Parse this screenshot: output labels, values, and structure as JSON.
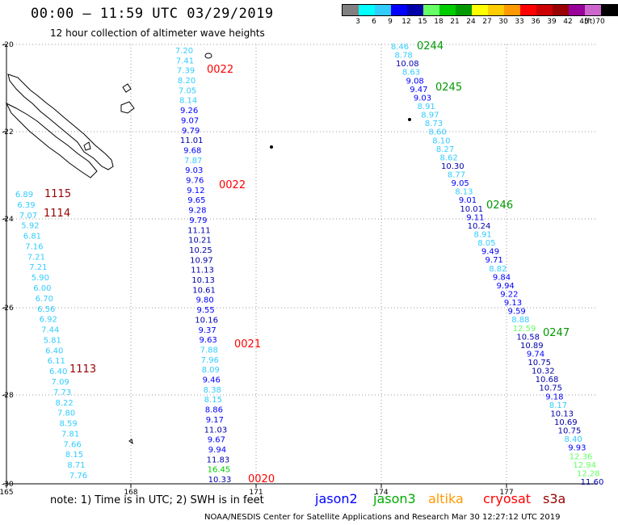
{
  "header": {
    "title": "00:00 – 11:59 UTC 03/29/2019",
    "subtitle": "12 hour collection of altimeter wave heights"
  },
  "colorbar": {
    "unit": "(ft)",
    "colors": [
      "#808080",
      "#00ffff",
      "#33ccff",
      "#0000ff",
      "#0000aa",
      "#66ff66",
      "#00cc00",
      "#009900",
      "#ffff00",
      "#ffcc00",
      "#ff9900",
      "#ff0000",
      "#cc0000",
      "#990000",
      "#990099",
      "#cc66cc",
      "#000000"
    ],
    "labels": [
      "3",
      "6",
      "9",
      "12",
      "15",
      "18",
      "21",
      "24",
      "27",
      "30",
      "33",
      "36",
      "39",
      "42",
      "45",
      "70"
    ]
  },
  "axes": {
    "x_ticks": [
      "165",
      "168",
      "171",
      "174",
      "177"
    ],
    "y_ticks": [
      "-20",
      "-22",
      "-24",
      "-26",
      "-28",
      "-30"
    ]
  },
  "tracks": [
    {
      "name": "track-1113-1115",
      "values": [
        "6.89",
        "6.39",
        "7.07",
        "5.92",
        "6.81",
        "7.16",
        "7.21",
        "7.21",
        "5.90",
        "6.00",
        "6.70",
        "6.56",
        "6.92",
        "7.44",
        "5.81",
        "6.40",
        "6.11",
        "6.40",
        "7.09",
        "7.73",
        "8.22",
        "7.80",
        "8.59",
        "7.81",
        "7.66",
        "8.15",
        "8.71",
        "7.76"
      ],
      "colors": [
        "#33ccff",
        "#33ccff",
        "#33ccff",
        "#33ccff",
        "#33ccff",
        "#33ccff",
        "#33ccff",
        "#33ccff",
        "#33ccff",
        "#33ccff",
        "#33ccff",
        "#33ccff",
        "#33ccff",
        "#33ccff",
        "#33ccff",
        "#33ccff",
        "#33ccff",
        "#33ccff",
        "#33ccff",
        "#33ccff",
        "#33ccff",
        "#33ccff",
        "#33ccff",
        "#33ccff",
        "#33ccff",
        "#33ccff",
        "#33ccff",
        "#33ccff"
      ]
    },
    {
      "name": "track-0020-0022",
      "values": [
        "7.20",
        "7.41",
        "7.39",
        "8.20",
        "7.05",
        "8.14",
        "9.26",
        "9.07",
        "9.79",
        "11.01",
        "9.68",
        "7.87",
        "9.03",
        "9.76",
        "9.12",
        "9.65",
        "9.28",
        "9.79",
        "11.11",
        "10.21",
        "10.25",
        "10.97",
        "11.13",
        "10.13",
        "10.61",
        "9.80",
        "9.55",
        "10.16",
        "9.37",
        "9.63",
        "7.88",
        "7.96",
        "8.09",
        "9.46",
        "8.38",
        "8.15",
        "8.86",
        "9.17",
        "11.03",
        "9.67",
        "9.94",
        "11.83",
        "16.45",
        "10.33"
      ],
      "colors": [
        "#33ccff",
        "#33ccff",
        "#33ccff",
        "#33ccff",
        "#33ccff",
        "#33ccff",
        "#0000ff",
        "#0000ff",
        "#0000ff",
        "#0000aa",
        "#0000ff",
        "#33ccff",
        "#0000ff",
        "#0000ff",
        "#0000ff",
        "#0000ff",
        "#0000ff",
        "#0000ff",
        "#0000aa",
        "#0000aa",
        "#0000aa",
        "#0000aa",
        "#0000aa",
        "#0000aa",
        "#0000aa",
        "#0000ff",
        "#0000ff",
        "#0000aa",
        "#0000ff",
        "#0000ff",
        "#33ccff",
        "#33ccff",
        "#33ccff",
        "#0000ff",
        "#33ccff",
        "#33ccff",
        "#0000ff",
        "#0000ff",
        "#0000aa",
        "#0000ff",
        "#0000ff",
        "#0000aa",
        "#00cc00",
        "#0000aa"
      ]
    },
    {
      "name": "track-0244-0247",
      "values": [
        "8.46",
        "8.78",
        "10.08",
        "8.63",
        "9.08",
        "9.47",
        "9.03",
        "8.91",
        "8.97",
        "8.73",
        "8.60",
        "8.10",
        "8.27",
        "8.62",
        "10.30",
        "8.77",
        "9.05",
        "8.13",
        "9.01",
        "10.01",
        "9.11",
        "10.24",
        "8.91",
        "8.05",
        "9.49",
        "9.71",
        "8.82",
        "9.84",
        "9.94",
        "9.22",
        "9.13",
        "9.59",
        "8.88",
        "12.59",
        "10.58",
        "10.89",
        "9.74",
        "10.75",
        "10.32",
        "10.68",
        "10.75",
        "9.18",
        "8.17",
        "10.13",
        "10.69",
        "10.75",
        "8.40",
        "9.93",
        "12.36",
        "12.94",
        "12.28",
        "11.60"
      ],
      "colors": [
        "#33ccff",
        "#33ccff",
        "#0000aa",
        "#33ccff",
        "#0000ff",
        "#0000ff",
        "#0000ff",
        "#33ccff",
        "#33ccff",
        "#33ccff",
        "#33ccff",
        "#33ccff",
        "#33ccff",
        "#33ccff",
        "#0000aa",
        "#33ccff",
        "#0000ff",
        "#33ccff",
        "#0000ff",
        "#0000aa",
        "#0000ff",
        "#0000aa",
        "#33ccff",
        "#33ccff",
        "#0000ff",
        "#0000ff",
        "#33ccff",
        "#0000ff",
        "#0000ff",
        "#0000ff",
        "#0000ff",
        "#0000ff",
        "#33ccff",
        "#66ff66",
        "#0000aa",
        "#0000aa",
        "#0000ff",
        "#0000aa",
        "#0000aa",
        "#0000aa",
        "#0000aa",
        "#0000ff",
        "#33ccff",
        "#0000aa",
        "#0000aa",
        "#0000aa",
        "#33ccff",
        "#0000ff",
        "#66ff66",
        "#66ff66",
        "#66ff66",
        "#0000aa"
      ]
    }
  ],
  "time_labels": [
    {
      "text": "1115",
      "color": "#990000"
    },
    {
      "text": "1114",
      "color": "#990000"
    },
    {
      "text": "1113",
      "color": "#990000"
    },
    {
      "text": "0022",
      "color": "#ff0000"
    },
    {
      "text": "0022",
      "color": "#ff0000"
    },
    {
      "text": "0021",
      "color": "#ff0000"
    },
    {
      "text": "0020",
      "color": "#ff0000"
    },
    {
      "text": "0244",
      "color": "#009900"
    },
    {
      "text": "0245",
      "color": "#009900"
    },
    {
      "text": "0246",
      "color": "#009900"
    },
    {
      "text": "0247",
      "color": "#009900"
    }
  ],
  "footer": {
    "note": "note: 1) Time is in UTC; 2) SWH is in feet",
    "satellites": [
      {
        "name": "jason2",
        "color": "#0000ff"
      },
      {
        "name": "jason3",
        "color": "#00aa00"
      },
      {
        "name": "altika",
        "color": "#ff9900"
      },
      {
        "name": "cryosat",
        "color": "#ff0000"
      },
      {
        "name": "s3a",
        "color": "#990000"
      }
    ],
    "credit": "NOAA/NESDIS Center for Satellite Applications and Research     Mar 30 12:27:12 UTC 2019"
  }
}
